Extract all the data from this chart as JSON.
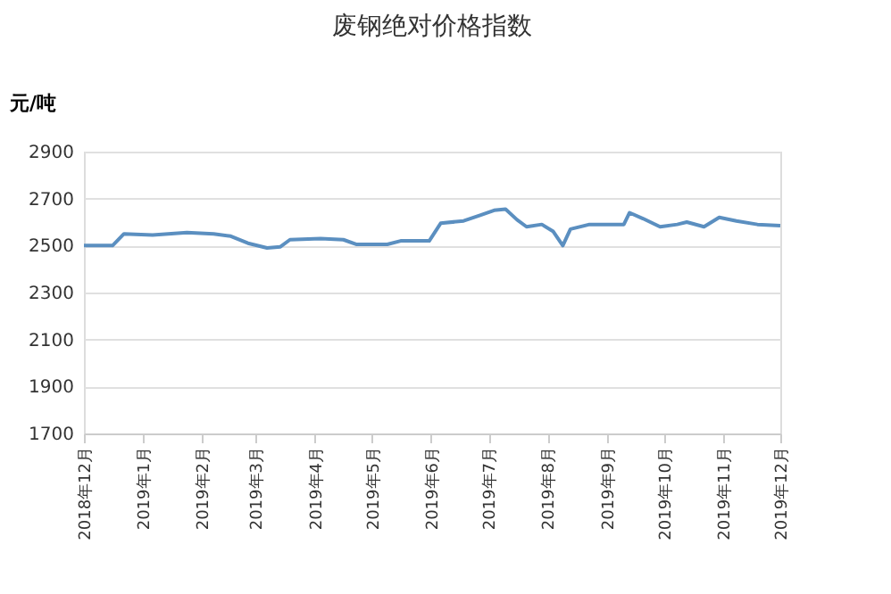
{
  "chart_data": {
    "type": "line",
    "title": "废钢绝对价格指数",
    "ylabel": "元/吨",
    "x": [
      "2018-12-01",
      "2018-12-16",
      "2018-12-22",
      "2019-01-06",
      "2019-01-24",
      "2019-02-07",
      "2019-02-16",
      "2019-02-25",
      "2019-03-07",
      "2019-03-14",
      "2019-03-19",
      "2019-04-04",
      "2019-04-16",
      "2019-04-23",
      "2019-05-09",
      "2019-05-16",
      "2019-05-31",
      "2019-06-06",
      "2019-06-18",
      "2019-06-27",
      "2019-07-04",
      "2019-07-10",
      "2019-07-16",
      "2019-07-21",
      "2019-07-29",
      "2019-08-04",
      "2019-08-09",
      "2019-08-13",
      "2019-08-23",
      "2019-09-10",
      "2019-09-13",
      "2019-09-20",
      "2019-09-29",
      "2019-10-08",
      "2019-10-13",
      "2019-10-22",
      "2019-10-30",
      "2019-11-08",
      "2019-11-19",
      "2019-12-01"
    ],
    "series": [
      {
        "color": "#5b8fc0",
        "values": [
          2500,
          2500,
          2550,
          2545,
          2555,
          2550,
          2540,
          2510,
          2490,
          2495,
          2525,
          2530,
          2525,
          2505,
          2505,
          2520,
          2520,
          2595,
          2605,
          2630,
          2650,
          2655,
          2610,
          2580,
          2590,
          2560,
          2500,
          2570,
          2590,
          2590,
          2640,
          2615,
          2580,
          2590,
          2600,
          2580,
          2620,
          2605,
          2590,
          2585
        ]
      }
    ],
    "xlim": [
      "2018-12-01",
      "2019-12-01"
    ],
    "xticks": [
      {
        "value": "2018-12-01",
        "label": "2018年12月"
      },
      {
        "value": "2019-01-01",
        "label": "2019年1月"
      },
      {
        "value": "2019-02-01",
        "label": "2019年2月"
      },
      {
        "value": "2019-03-01",
        "label": "2019年3月"
      },
      {
        "value": "2019-04-01",
        "label": "2019年4月"
      },
      {
        "value": "2019-05-01",
        "label": "2019年5月"
      },
      {
        "value": "2019-06-01",
        "label": "2019年6月"
      },
      {
        "value": "2019-07-01",
        "label": "2019年7月"
      },
      {
        "value": "2019-08-01",
        "label": "2019年8月"
      },
      {
        "value": "2019-09-01",
        "label": "2019年9月"
      },
      {
        "value": "2019-10-01",
        "label": "2019年10月"
      },
      {
        "value": "2019-11-01",
        "label": "2019年11月"
      },
      {
        "value": "2019-12-01",
        "label": "2019年12月"
      }
    ],
    "ylim": [
      1700,
      2900
    ],
    "yticks": [
      1700,
      1900,
      2100,
      2300,
      2500,
      2700,
      2900
    ],
    "grid": "y",
    "legend": false,
    "marker": "none",
    "line_style": "solid"
  }
}
